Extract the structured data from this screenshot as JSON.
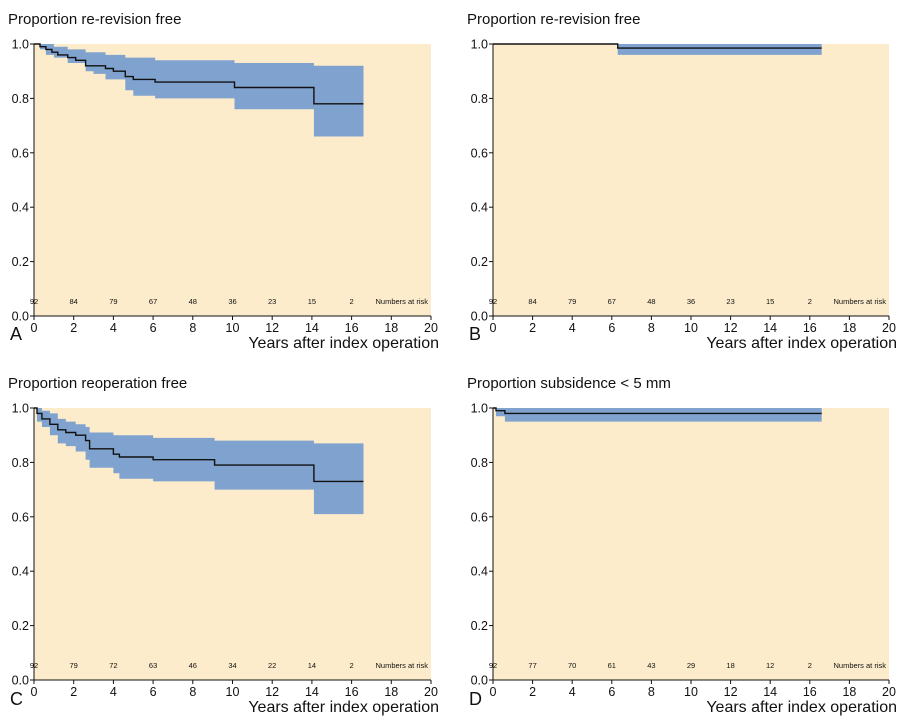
{
  "colors": {
    "plot_background": "#fdeccb",
    "confidence_band": "#80a2cf",
    "curve": "#111111"
  },
  "chart_data": [
    {
      "type": "line",
      "panel": "A",
      "title": "Proportion re-revision free",
      "xlabel": "Years after index operation",
      "ylabel": "",
      "xlim": [
        0,
        20
      ],
      "ylim": [
        0,
        1
      ],
      "xticks": [
        "0",
        "2",
        "4",
        "6",
        "8",
        "10",
        "12",
        "14",
        "16",
        "18",
        "20"
      ],
      "yticks": [
        "0.0",
        "0.2",
        "0.4",
        "0.6",
        "0.8",
        "1.0"
      ],
      "series": [
        {
          "step": [
            [
              0,
              1.0
            ],
            [
              0.3,
              0.99
            ],
            [
              0.6,
              0.98
            ],
            [
              0.9,
              0.97
            ],
            [
              1.2,
              0.96
            ],
            [
              1.7,
              0.95
            ],
            [
              2.1,
              0.94
            ],
            [
              2.6,
              0.92
            ],
            [
              3.0,
              0.92
            ],
            [
              3.6,
              0.91
            ],
            [
              4.0,
              0.9
            ],
            [
              4.6,
              0.88
            ],
            [
              5.0,
              0.87
            ],
            [
              6.1,
              0.86
            ],
            [
              10.1,
              0.84
            ],
            [
              14.1,
              0.78
            ],
            [
              16.6,
              0.78
            ]
          ],
          "ci_upper": [
            [
              0,
              1.0
            ],
            [
              0.6,
              1.0
            ],
            [
              1.0,
              0.99
            ],
            [
              1.7,
              0.98
            ],
            [
              2.6,
              0.97
            ],
            [
              3.6,
              0.96
            ],
            [
              4.6,
              0.95
            ],
            [
              6.1,
              0.94
            ],
            [
              10.1,
              0.93
            ],
            [
              14.1,
              0.92
            ],
            [
              16.6,
              0.92
            ]
          ],
          "ci_lower": [
            [
              0,
              1.0
            ],
            [
              0.3,
              0.98
            ],
            [
              0.6,
              0.96
            ],
            [
              1.0,
              0.95
            ],
            [
              1.7,
              0.93
            ],
            [
              2.6,
              0.9
            ],
            [
              3.0,
              0.89
            ],
            [
              3.6,
              0.87
            ],
            [
              4.6,
              0.83
            ],
            [
              5.0,
              0.81
            ],
            [
              6.1,
              0.8
            ],
            [
              10.1,
              0.76
            ],
            [
              14.1,
              0.66
            ],
            [
              16.6,
              0.66
            ]
          ]
        }
      ],
      "numbers_at_risk": {
        "label": "Numbers at risk",
        "values": [
          "92",
          "84",
          "79",
          "67",
          "48",
          "36",
          "23",
          "15",
          "2"
        ]
      }
    },
    {
      "type": "line",
      "panel": "B",
      "title": "Proportion re-revision free",
      "xlabel": "Years after index operation",
      "ylabel": "",
      "xlim": [
        0,
        20
      ],
      "ylim": [
        0,
        1
      ],
      "xticks": [
        "0",
        "2",
        "4",
        "6",
        "8",
        "10",
        "12",
        "14",
        "16",
        "18",
        "20"
      ],
      "yticks": [
        "0.0",
        "0.2",
        "0.4",
        "0.6",
        "0.8",
        "1.0"
      ],
      "series": [
        {
          "step": [
            [
              0,
              1.0
            ],
            [
              6.3,
              0.985
            ],
            [
              16.6,
              0.985
            ]
          ],
          "ci_upper": [
            [
              0,
              1.0
            ],
            [
              16.6,
              1.0
            ]
          ],
          "ci_lower": [
            [
              0,
              1.0
            ],
            [
              6.3,
              0.96
            ],
            [
              16.6,
              0.96
            ]
          ]
        }
      ],
      "numbers_at_risk": {
        "label": "Numbers at risk",
        "values": [
          "92",
          "84",
          "79",
          "67",
          "48",
          "36",
          "23",
          "15",
          "2"
        ]
      }
    },
    {
      "type": "line",
      "panel": "C",
      "title": "Proportion reoperation free",
      "xlabel": "Years after index operation",
      "ylabel": "",
      "xlim": [
        0,
        20
      ],
      "ylim": [
        0,
        1
      ],
      "xticks": [
        "0",
        "2",
        "4",
        "6",
        "8",
        "10",
        "12",
        "14",
        "16",
        "18",
        "20"
      ],
      "yticks": [
        "0.0",
        "0.2",
        "0.4",
        "0.6",
        "0.8",
        "1.0"
      ],
      "series": [
        {
          "step": [
            [
              0,
              1.0
            ],
            [
              0.15,
              0.98
            ],
            [
              0.4,
              0.96
            ],
            [
              0.8,
              0.94
            ],
            [
              1.2,
              0.92
            ],
            [
              1.6,
              0.91
            ],
            [
              2.1,
              0.9
            ],
            [
              2.6,
              0.88
            ],
            [
              2.8,
              0.85
            ],
            [
              4.0,
              0.83
            ],
            [
              4.3,
              0.82
            ],
            [
              6.0,
              0.81
            ],
            [
              9.1,
              0.79
            ],
            [
              14.1,
              0.73
            ],
            [
              16.6,
              0.73
            ]
          ],
          "ci_upper": [
            [
              0,
              1.0
            ],
            [
              0.4,
              0.99
            ],
            [
              0.8,
              0.98
            ],
            [
              1.2,
              0.96
            ],
            [
              1.6,
              0.95
            ],
            [
              2.1,
              0.94
            ],
            [
              2.6,
              0.93
            ],
            [
              2.8,
              0.91
            ],
            [
              4.0,
              0.9
            ],
            [
              6.0,
              0.89
            ],
            [
              9.1,
              0.88
            ],
            [
              14.1,
              0.87
            ],
            [
              16.6,
              0.87
            ]
          ],
          "ci_lower": [
            [
              0,
              1.0
            ],
            [
              0.15,
              0.95
            ],
            [
              0.4,
              0.93
            ],
            [
              0.8,
              0.9
            ],
            [
              1.2,
              0.87
            ],
            [
              1.6,
              0.86
            ],
            [
              2.1,
              0.84
            ],
            [
              2.6,
              0.81
            ],
            [
              2.8,
              0.78
            ],
            [
              4.0,
              0.76
            ],
            [
              4.3,
              0.74
            ],
            [
              6.0,
              0.73
            ],
            [
              9.1,
              0.7
            ],
            [
              14.1,
              0.61
            ],
            [
              16.6,
              0.61
            ]
          ]
        }
      ],
      "numbers_at_risk": {
        "label": "Numbers at risk",
        "values": [
          "92",
          "79",
          "72",
          "63",
          "46",
          "34",
          "22",
          "14",
          "2"
        ]
      }
    },
    {
      "type": "line",
      "panel": "D",
      "title": "Proportion subsidence < 5 mm",
      "xlabel": "Years after index operation",
      "ylabel": "",
      "xlim": [
        0,
        20
      ],
      "ylim": [
        0,
        1
      ],
      "xticks": [
        "0",
        "2",
        "4",
        "6",
        "8",
        "10",
        "12",
        "14",
        "16",
        "18",
        "20"
      ],
      "yticks": [
        "0.0",
        "0.2",
        "0.4",
        "0.6",
        "0.8",
        "1.0"
      ],
      "series": [
        {
          "step": [
            [
              0,
              1.0
            ],
            [
              0.15,
              0.99
            ],
            [
              0.6,
              0.98
            ],
            [
              16.6,
              0.98
            ]
          ],
          "ci_upper": [
            [
              0,
              1.0
            ],
            [
              16.6,
              1.0
            ]
          ],
          "ci_lower": [
            [
              0,
              1.0
            ],
            [
              0.15,
              0.97
            ],
            [
              0.6,
              0.95
            ],
            [
              16.6,
              0.95
            ]
          ]
        }
      ],
      "numbers_at_risk": {
        "label": "Numbers at risk",
        "values": [
          "92",
          "77",
          "70",
          "61",
          "43",
          "29",
          "18",
          "12",
          "2"
        ]
      }
    }
  ]
}
